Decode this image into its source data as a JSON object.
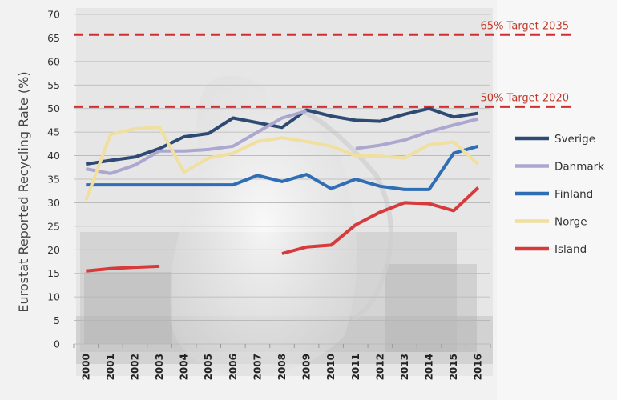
{
  "chart_data": {
    "type": "line",
    "title": "",
    "xlabel": "",
    "ylabel": "Eurostat Reported Recycling Rate (%)",
    "ylim": [
      0,
      70
    ],
    "yticks": [
      0,
      5,
      10,
      15,
      20,
      25,
      30,
      35,
      40,
      45,
      50,
      55,
      60,
      65,
      70
    ],
    "grid": true,
    "legend_position": "right",
    "categories": [
      "2000",
      "2001",
      "2002",
      "2003",
      "2004",
      "2005",
      "2006",
      "2007",
      "2008",
      "2009",
      "2010",
      "2011",
      "2012",
      "2013",
      "2014",
      "2015",
      "2016"
    ],
    "series": [
      {
        "name": "Sverige",
        "color": "#2e4a72",
        "values": [
          38.2,
          39,
          39.7,
          41.5,
          44,
          44.7,
          48,
          47,
          46,
          49.7,
          48.4,
          47.5,
          47.3,
          48.8,
          50,
          48.2,
          49
        ]
      },
      {
        "name": "Danmark",
        "color": "#aba7cf",
        "values": [
          37.2,
          36.2,
          38,
          41,
          41,
          41.3,
          42,
          45,
          48,
          49.5,
          null,
          41.5,
          42.2,
          43.3,
          45.1,
          46.5,
          47.8
        ]
      },
      {
        "name": "Finland",
        "color": "#2f6db5",
        "values": [
          33.8,
          33.8,
          33.8,
          33.8,
          33.8,
          33.8,
          33.8,
          35.8,
          34.5,
          36,
          33,
          35,
          33.5,
          32.8,
          32.8,
          40.5,
          42
        ]
      },
      {
        "name": "Norge",
        "color": "#f0df9e",
        "values": [
          30.5,
          44.5,
          45.7,
          46,
          36.5,
          39.5,
          40.5,
          43,
          43.8,
          43,
          42,
          40,
          39.9,
          39.5,
          42.3,
          42.9,
          38.2
        ]
      },
      {
        "name": "Island",
        "color": "#d63a3a",
        "values": [
          15.5,
          16,
          16.3,
          16.5,
          null,
          null,
          null,
          null,
          19.2,
          20.6,
          21,
          25.3,
          28,
          30,
          29.8,
          28.3,
          33.2
        ]
      }
    ],
    "target_lines": [
      {
        "label": "65% Target 2035",
        "value": 65.7,
        "color": "#d32f2f"
      },
      {
        "label": "50% Target 2020",
        "value": 50.4,
        "color": "#d32f2f"
      }
    ]
  }
}
